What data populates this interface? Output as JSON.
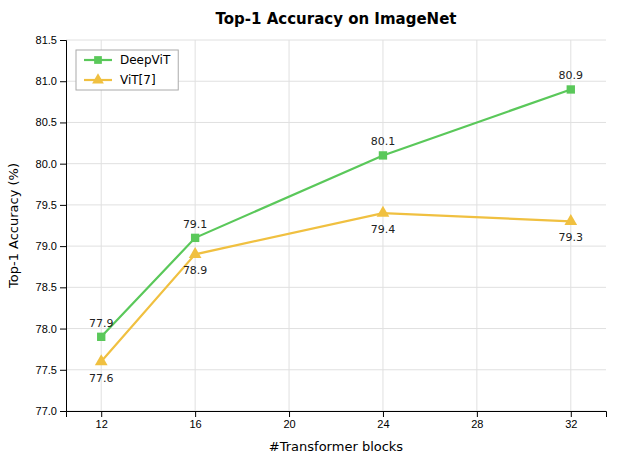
{
  "chart_data": {
    "type": "line",
    "title": "Top-1 Accuracy on ImageNet",
    "xlabel": "#Transformer blocks",
    "ylabel": "Top-1 Accuracy (%)",
    "x": [
      12,
      16,
      24,
      32
    ],
    "series": [
      {
        "name": "DeepViT",
        "color": "#5ac85a",
        "marker": "square",
        "values": [
          77.9,
          79.1,
          80.1,
          80.9
        ]
      },
      {
        "name": "ViT[7]",
        "color": "#f0c040",
        "marker": "triangle",
        "values": [
          77.6,
          78.9,
          79.4,
          79.3
        ]
      }
    ],
    "xlim": [
      10.5,
      33.5
    ],
    "xticks": [
      12,
      16,
      20,
      24,
      28,
      32
    ],
    "ylim": [
      77.0,
      81.5
    ],
    "yticks": [
      {
        "value": 77,
        "label": "77.0"
      },
      77.5,
      {
        "value": 78,
        "label": "78.0"
      },
      78.5,
      {
        "value": 79,
        "label": "79.0"
      },
      79.5,
      {
        "value": 80,
        "label": "80.0"
      },
      80.5,
      {
        "value": 81,
        "label": "81.0"
      },
      81.5
    ],
    "grid": true,
    "legend": "upper left",
    "data_labels": true
  }
}
